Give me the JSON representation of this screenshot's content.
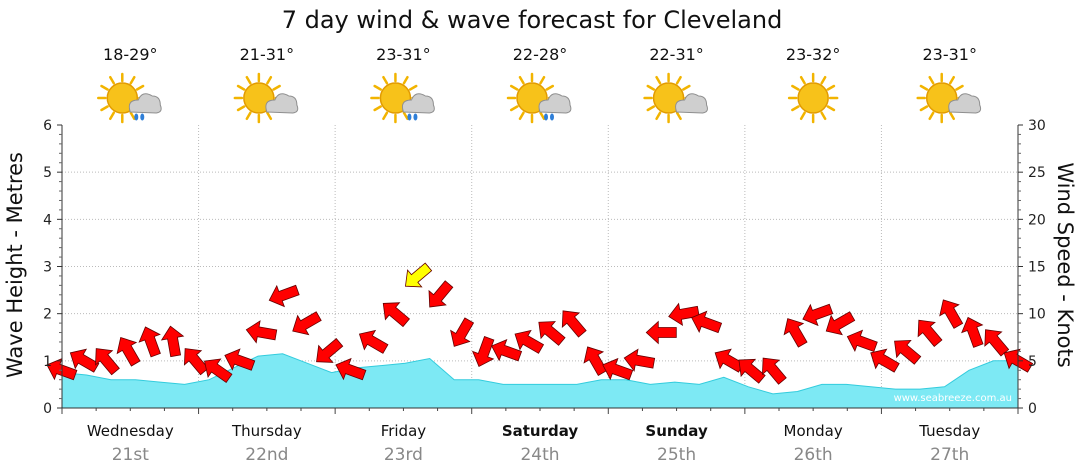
{
  "chart_data": {
    "type": "area",
    "title": "7 day wind & wave forecast for Cleveland",
    "ylabel_left": "Wave Height - Metres",
    "ylabel_right": "Wind Speed - Knots",
    "ylim_left": [
      0,
      6
    ],
    "ylim_right": [
      0,
      30
    ],
    "y_ticks_left": [
      "0",
      "1",
      "2",
      "3",
      "4",
      "5",
      "6"
    ],
    "y_ticks_right": [
      "0",
      "5",
      "10",
      "15",
      "20",
      "25",
      "30"
    ],
    "watermark": "www.seabreeze.com.au",
    "days": [
      {
        "name": "Wednesday",
        "date": "21st",
        "temp": "18-29°",
        "weather": "sun-cloud-rain",
        "bold": false
      },
      {
        "name": "Thursday",
        "date": "22nd",
        "temp": "21-31°",
        "weather": "sun-cloud",
        "bold": false
      },
      {
        "name": "Friday",
        "date": "23rd",
        "temp": "23-31°",
        "weather": "sun-cloud-rain",
        "bold": false
      },
      {
        "name": "Saturday",
        "date": "24th",
        "temp": "22-28°",
        "weather": "sun-cloud-rain",
        "bold": true
      },
      {
        "name": "Sunday",
        "date": "25th",
        "temp": "22-31°",
        "weather": "sun-cloud",
        "bold": true
      },
      {
        "name": "Monday",
        "date": "26th",
        "temp": "23-32°",
        "weather": "sun",
        "bold": false
      },
      {
        "name": "Tuesday",
        "date": "27th",
        "temp": "23-31°",
        "weather": "sun-cloud",
        "bold": false
      }
    ],
    "wave_height_m": [
      0.75,
      0.7,
      0.6,
      0.6,
      0.55,
      0.5,
      0.6,
      0.85,
      1.1,
      1.15,
      0.95,
      0.75,
      0.85,
      0.9,
      0.95,
      1.05,
      0.6,
      0.6,
      0.5,
      0.5,
      0.5,
      0.5,
      0.6,
      0.6,
      0.5,
      0.55,
      0.5,
      0.65,
      0.45,
      0.3,
      0.35,
      0.5,
      0.5,
      0.45,
      0.4,
      0.4,
      0.45,
      0.8,
      1.0,
      1.0
    ],
    "wind_speed_kn": [
      4,
      5,
      5,
      6,
      7,
      7,
      5,
      4,
      5,
      8,
      12,
      9,
      6,
      4,
      7,
      10,
      14,
      12,
      8,
      6,
      6,
      7,
      8,
      9,
      5,
      4,
      5,
      8,
      10,
      9,
      5,
      4,
      4,
      8,
      10,
      9,
      7,
      5,
      6,
      8,
      10,
      8,
      7,
      5
    ],
    "wind_speed_peak_labels": [],
    "wind_color_normal": "#ff0000",
    "wind_color_strong": "#ffff00",
    "wave_fill_color": "#7de9f4",
    "wave_line_color": "#33ccdd"
  }
}
